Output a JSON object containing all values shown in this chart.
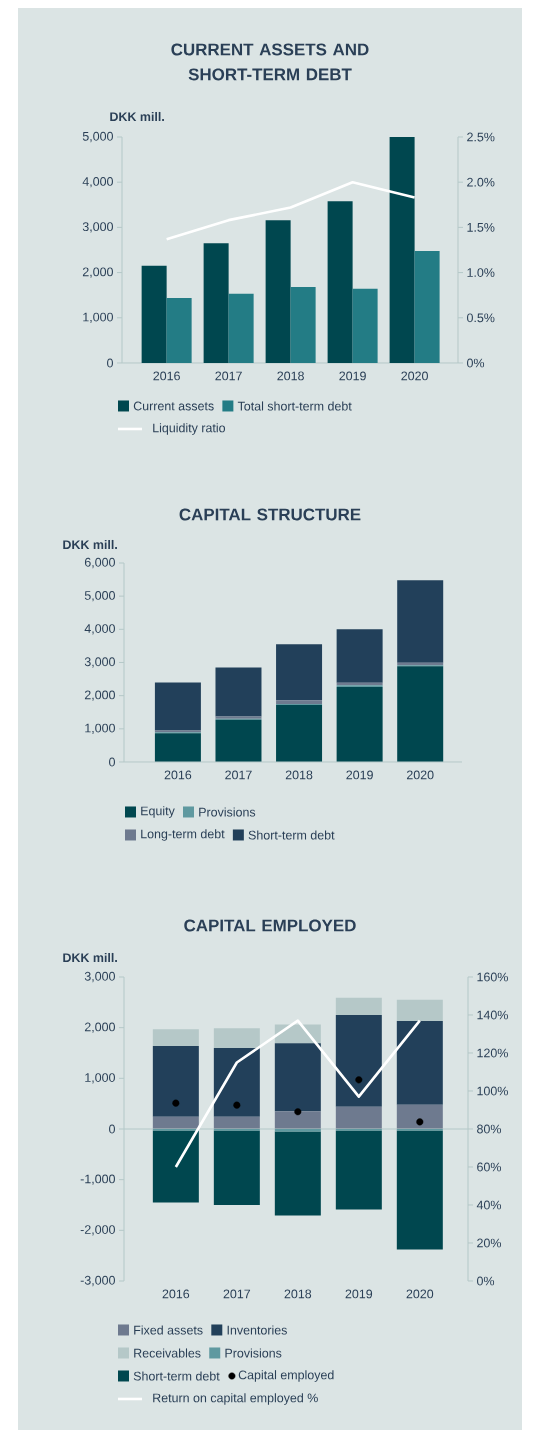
{
  "chart_data": [
    {
      "type": "bar",
      "title": "CURRENT ASSETS AND SHORT-TERM DEBT",
      "ylabel": "DKK mill.",
      "categories": [
        "2016",
        "2017",
        "2018",
        "2019",
        "2020"
      ],
      "series": [
        {
          "name": "Current assets",
          "color": "#00474f",
          "values": [
            2150,
            2650,
            3160,
            3580,
            5000
          ]
        },
        {
          "name": "Total short-term debt",
          "color": "#237c85",
          "values": [
            1440,
            1530,
            1680,
            1640,
            2480
          ]
        },
        {
          "name": "Liquidity ratio",
          "type": "line",
          "axis": "y2",
          "color": "#ffffff",
          "values": [
            1.37,
            1.58,
            1.72,
            2.0,
            1.83
          ]
        }
      ],
      "ylim": [
        0,
        5000
      ],
      "yticks": [
        0,
        {
          "value": 1000,
          "label": "1,000"
        },
        {
          "value": 2000,
          "label": "2,000"
        },
        {
          "value": 3000,
          "label": "3,000"
        },
        {
          "value": 4000,
          "label": "4,000"
        },
        {
          "value": 5000,
          "label": "5,000"
        }
      ],
      "y2lim": [
        0,
        2.5
      ],
      "y2ticks": [
        {
          "value": 0,
          "label": "0%"
        },
        {
          "value": 0.5,
          "label": "0.5%"
        },
        {
          "value": 1.0,
          "label": "1.0%"
        },
        {
          "value": 1.5,
          "label": "1.5%"
        },
        {
          "value": 2.0,
          "label": "2.0%"
        },
        {
          "value": 2.5,
          "label": "2.5%"
        }
      ],
      "legend": "bottom"
    },
    {
      "type": "bar",
      "stacked": true,
      "title": "CAPITAL STRUCTURE",
      "ylabel": "DKK mill.",
      "categories": [
        "2016",
        "2017",
        "2018",
        "2019",
        "2020"
      ],
      "series": [
        {
          "name": "Equity",
          "color": "#00474f",
          "values": [
            870,
            1270,
            1720,
            2260,
            2890
          ]
        },
        {
          "name": "Provisions",
          "color": "#5f99a0",
          "values": [
            30,
            30,
            30,
            50,
            30
          ]
        },
        {
          "name": "Long-term debt",
          "color": "#6e7a8f",
          "values": [
            50,
            70,
            110,
            80,
            70
          ]
        },
        {
          "name": "Short-term debt",
          "color": "#22405a",
          "values": [
            1450,
            1480,
            1690,
            1610,
            2490
          ]
        }
      ],
      "ylim": [
        0,
        6000
      ],
      "yticks": [
        0,
        {
          "value": 1000,
          "label": "1,000"
        },
        {
          "value": 2000,
          "label": "2,000"
        },
        {
          "value": 3000,
          "label": "3,000"
        },
        {
          "value": 4000,
          "label": "4,000"
        },
        {
          "value": 5000,
          "label": "5,000"
        },
        {
          "value": 6000,
          "label": "6,000"
        }
      ],
      "legend": "bottom"
    },
    {
      "type": "bar",
      "stacked": true,
      "title": "CAPITAL EMPLOYED",
      "ylabel": "DKK mill.",
      "categories": [
        "2016",
        "2017",
        "2018",
        "2019",
        "2020"
      ],
      "series": [
        {
          "name": "Fixed assets",
          "color": "#6e7a8f",
          "values": [
            240,
            240,
            350,
            440,
            480
          ]
        },
        {
          "name": "Inventories",
          "color": "#22405a",
          "values": [
            1400,
            1360,
            1340,
            1810,
            1650
          ]
        },
        {
          "name": "Receivables",
          "color": "#b5c8c8",
          "values": [
            330,
            390,
            370,
            340,
            420
          ]
        },
        {
          "name": "Provisions",
          "color": "#5f99a0",
          "values": [
            -30,
            -30,
            -50,
            -30,
            -30
          ]
        },
        {
          "name": "Short-term debt",
          "color": "#00474f",
          "values": [
            -1420,
            -1470,
            -1660,
            -1560,
            -2350
          ]
        },
        {
          "name": "Capital employed",
          "type": "scatter",
          "marker": "circle",
          "color": "#000000",
          "values": [
            510,
            470,
            340,
            970,
            140
          ]
        },
        {
          "name": "Return on capital employed %",
          "type": "line",
          "axis": "y2",
          "color": "#ffffff",
          "values": [
            60,
            115,
            137,
            97,
            137
          ]
        }
      ],
      "ylim": [
        -3000,
        3000
      ],
      "yticks": [
        {
          "value": -3000,
          "label": "-3,000"
        },
        {
          "value": -2000,
          "label": "-2,000"
        },
        {
          "value": -1000,
          "label": "-1,000"
        },
        0,
        {
          "value": 1000,
          "label": "1,000"
        },
        {
          "value": 2000,
          "label": "2,000"
        },
        {
          "value": 3000,
          "label": "3,000"
        }
      ],
      "y2lim": [
        0,
        160
      ],
      "y2ticks": [
        {
          "value": 0,
          "label": "0%"
        },
        {
          "value": 20,
          "label": "20%"
        },
        {
          "value": 40,
          "label": "40%"
        },
        {
          "value": 60,
          "label": "60%"
        },
        {
          "value": 80,
          "label": "80%"
        },
        {
          "value": 100,
          "label": "100%"
        },
        {
          "value": 120,
          "label": "120%"
        },
        {
          "value": 140,
          "label": "140%"
        },
        {
          "value": 160,
          "label": "160%"
        }
      ],
      "legend": "bottom"
    }
  ]
}
